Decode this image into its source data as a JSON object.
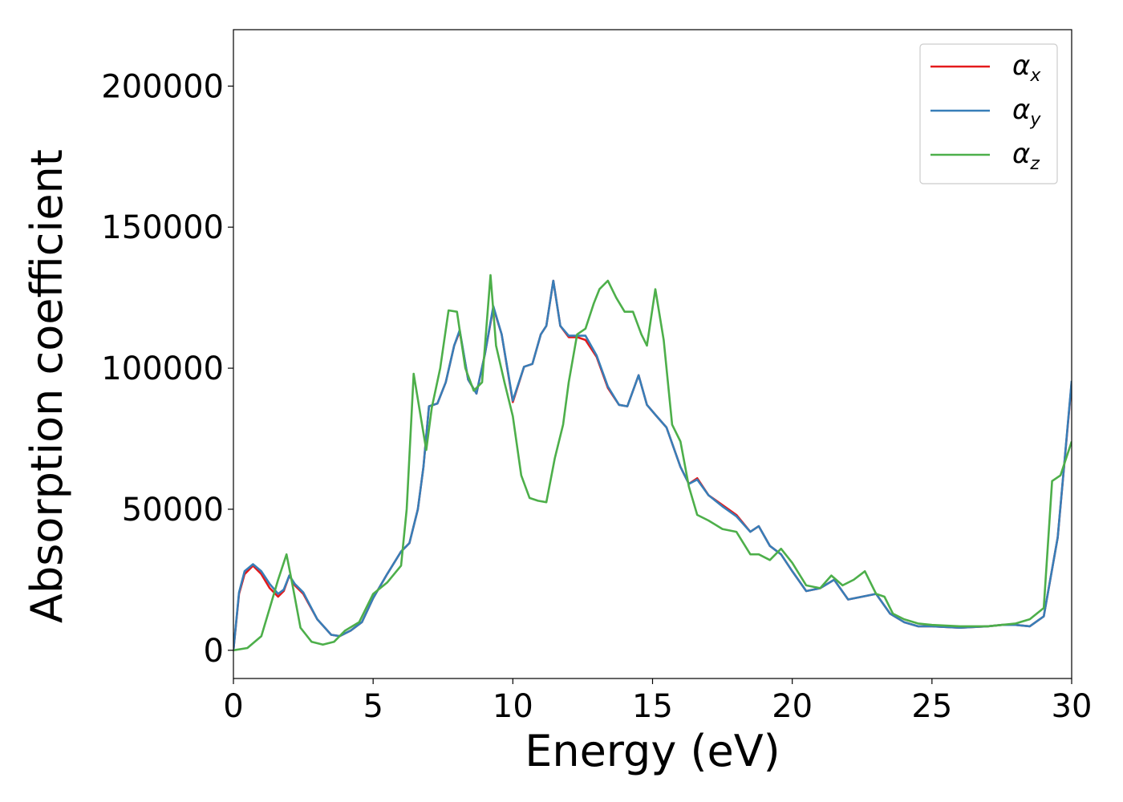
{
  "chart_data": {
    "type": "line",
    "title": "",
    "xlabel": "Energy (eV)",
    "ylabel": "Absorption coefficient",
    "xlim": [
      0,
      30
    ],
    "ylim": [
      -10000,
      220000
    ],
    "xticks": [
      0,
      5,
      10,
      15,
      20,
      25,
      30
    ],
    "yticks": [
      0,
      50000,
      100000,
      150000,
      200000
    ],
    "grid": false,
    "legend_position": "top-right",
    "series": [
      {
        "name": "αx",
        "name_base": "α",
        "name_sub": "x",
        "color": "#e41a1c",
        "x": [
          0,
          0.2,
          0.4,
          0.7,
          1.0,
          1.3,
          1.6,
          1.8,
          2.0,
          2.2,
          2.5,
          3.0,
          3.5,
          3.8,
          4.2,
          4.6,
          5.0,
          5.5,
          6.0,
          6.3,
          6.6,
          6.8,
          7.0,
          7.3,
          7.6,
          7.9,
          8.1,
          8.4,
          8.7,
          9.0,
          9.3,
          9.6,
          10.0,
          10.4,
          10.7,
          11.0,
          11.2,
          11.45,
          11.7,
          12.0,
          12.3,
          12.6,
          13.0,
          13.4,
          13.8,
          14.1,
          14.5,
          14.8,
          15.1,
          15.5,
          16.0,
          16.3,
          16.6,
          17.0,
          17.5,
          18.0,
          18.5,
          18.8,
          19.2,
          19.6,
          20.0,
          20.5,
          21.0,
          21.5,
          22.0,
          22.5,
          23.0,
          23.5,
          24.0,
          24.5,
          25.0,
          26.0,
          27.0,
          27.5,
          28.0,
          28.5,
          29.0,
          29.5,
          30.0
        ],
        "y": [
          0,
          20000,
          27000,
          30000,
          27000,
          22000,
          19000,
          21000,
          26500,
          23000,
          20000,
          11000,
          5500,
          5000,
          7000,
          10000,
          18500,
          27000,
          35000,
          38000,
          50000,
          65000,
          86500,
          87500,
          95000,
          108000,
          113000,
          96000,
          91000,
          105000,
          121500,
          112000,
          88000,
          100500,
          101500,
          112000,
          115000,
          131000,
          115000,
          111000,
          111000,
          110000,
          104000,
          93000,
          87000,
          86500,
          97500,
          87000,
          83500,
          79000,
          65000,
          59000,
          61000,
          55000,
          51500,
          48000,
          42000,
          44000,
          37000,
          34000,
          28000,
          21000,
          22000,
          25000,
          18000,
          19000,
          20000,
          13000,
          10000,
          8500,
          8500,
          8000,
          8500,
          9000,
          9000,
          8500,
          12000,
          40000,
          95000
        ]
      },
      {
        "name": "αy",
        "name_base": "α",
        "name_sub": "y",
        "color": "#377eb8",
        "x": [
          0,
          0.2,
          0.4,
          0.7,
          1.0,
          1.3,
          1.6,
          1.8,
          2.0,
          2.2,
          2.5,
          3.0,
          3.5,
          3.8,
          4.2,
          4.6,
          5.0,
          5.5,
          6.0,
          6.3,
          6.6,
          6.8,
          7.0,
          7.3,
          7.6,
          7.9,
          8.1,
          8.4,
          8.7,
          9.0,
          9.3,
          9.6,
          10.0,
          10.4,
          10.7,
          11.0,
          11.2,
          11.45,
          11.7,
          12.0,
          12.3,
          12.6,
          13.0,
          13.4,
          13.8,
          14.1,
          14.5,
          14.8,
          15.1,
          15.5,
          16.0,
          16.3,
          16.6,
          17.0,
          17.5,
          18.0,
          18.5,
          18.8,
          19.2,
          19.6,
          20.0,
          20.5,
          21.0,
          21.5,
          22.0,
          22.5,
          23.0,
          23.5,
          24.0,
          24.5,
          25.0,
          26.0,
          27.0,
          27.5,
          28.0,
          28.5,
          29.0,
          29.5,
          30.0
        ],
        "y": [
          0,
          20500,
          28000,
          30500,
          28000,
          23500,
          20000,
          21500,
          26500,
          23500,
          20500,
          11000,
          5500,
          5000,
          7000,
          10000,
          18500,
          27000,
          35000,
          38000,
          50000,
          65000,
          86500,
          87500,
          95000,
          108000,
          113500,
          96000,
          91000,
          105000,
          122000,
          112000,
          88500,
          100500,
          101500,
          112000,
          115000,
          131000,
          115000,
          111500,
          111500,
          111500,
          104500,
          93500,
          87000,
          86500,
          97500,
          87000,
          83500,
          79000,
          65000,
          59000,
          60500,
          55000,
          51000,
          47500,
          42000,
          44000,
          37000,
          34000,
          28000,
          21000,
          22000,
          25000,
          18000,
          19000,
          20000,
          13000,
          10000,
          8500,
          8500,
          8000,
          8500,
          9000,
          9000,
          8500,
          12000,
          40000,
          95500
        ]
      },
      {
        "name": "αz",
        "name_base": "α",
        "name_sub": "z",
        "color": "#4daf4a",
        "x": [
          0,
          0.5,
          1.0,
          1.3,
          1.6,
          1.9,
          2.1,
          2.4,
          2.8,
          3.2,
          3.6,
          4.0,
          4.5,
          5.0,
          5.5,
          6.0,
          6.2,
          6.45,
          6.7,
          6.9,
          7.1,
          7.4,
          7.7,
          8.0,
          8.3,
          8.6,
          8.9,
          9.2,
          9.4,
          9.7,
          10.0,
          10.3,
          10.6,
          10.9,
          11.2,
          11.5,
          11.8,
          12.0,
          12.3,
          12.6,
          12.9,
          13.1,
          13.4,
          13.7,
          14.0,
          14.3,
          14.6,
          14.8,
          15.1,
          15.4,
          15.7,
          16.0,
          16.3,
          16.6,
          17.0,
          17.5,
          18.0,
          18.5,
          18.8,
          19.2,
          19.6,
          20.0,
          20.5,
          21.0,
          21.4,
          21.8,
          22.2,
          22.6,
          23.0,
          23.3,
          23.6,
          24.0,
          24.5,
          25.0,
          26.0,
          27.0,
          28.0,
          28.5,
          29.0,
          29.3,
          29.6,
          30.0
        ],
        "y": [
          0,
          800,
          5000,
          15000,
          25000,
          34000,
          24000,
          8000,
          3000,
          2000,
          3000,
          7000,
          10000,
          20000,
          24000,
          30000,
          50000,
          98000,
          83000,
          71000,
          86000,
          100000,
          120500,
          120000,
          100000,
          92000,
          95000,
          133000,
          108000,
          95000,
          83000,
          62000,
          54000,
          53000,
          52500,
          68000,
          80000,
          95000,
          112000,
          114000,
          123000,
          128000,
          131000,
          125000,
          120000,
          120000,
          112000,
          108000,
          128000,
          110000,
          80000,
          74000,
          58000,
          48000,
          46000,
          43000,
          42000,
          34000,
          34000,
          32000,
          36000,
          31000,
          23000,
          22000,
          26500,
          23000,
          25000,
          28000,
          20000,
          19000,
          13000,
          11000,
          9500,
          9000,
          8500,
          8500,
          9500,
          11000,
          15000,
          60000,
          62000,
          74000
        ]
      }
    ]
  }
}
